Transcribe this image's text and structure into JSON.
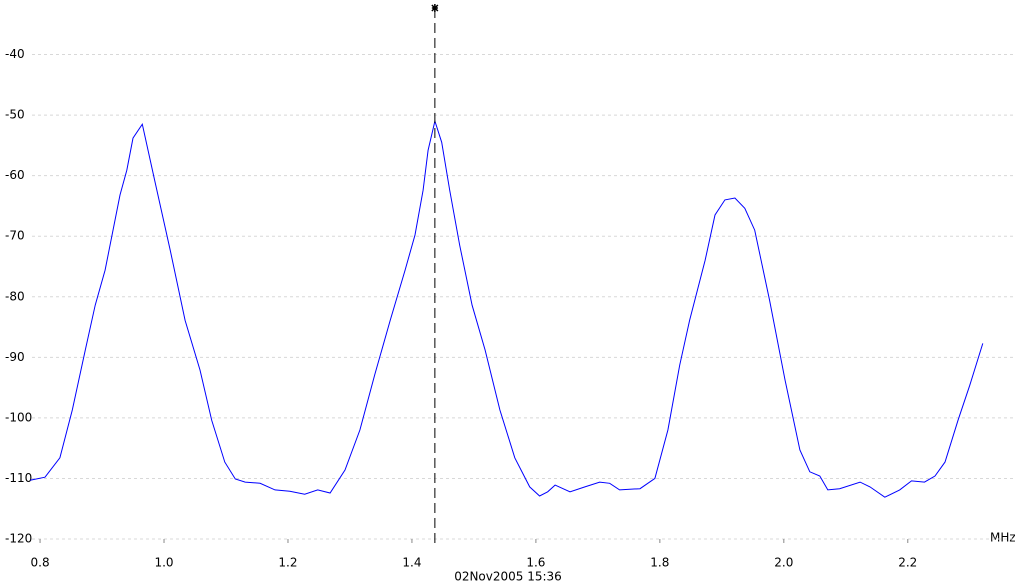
{
  "chart_data": {
    "type": "line",
    "x_unit_label": "MHz",
    "timestamp": "02Nov2005  15:36",
    "xlim": [
      0.787,
      2.373
    ],
    "ylim": [
      -120,
      -31
    ],
    "xticks": [
      0.8,
      {
        "value": 1,
        "label": "1.0"
      },
      1.2,
      1.4,
      1.6,
      1.8,
      {
        "value": 2,
        "label": "2.0"
      },
      2.2
    ],
    "yticks": [
      -40,
      -50,
      -60,
      -70,
      -80,
      -90,
      -100,
      -110,
      -120
    ],
    "grid": true,
    "marker_x": 1.437,
    "series": [
      {
        "color": "#0000ff",
        "x": [
          0.784,
          0.808,
          0.832,
          0.852,
          0.873,
          0.889,
          0.905,
          0.929,
          0.94,
          0.95,
          0.965,
          0.985,
          1.01,
          1.034,
          1.058,
          1.077,
          1.098,
          1.115,
          1.131,
          1.155,
          1.179,
          1.203,
          1.227,
          1.248,
          1.268,
          1.292,
          1.316,
          1.34,
          1.365,
          1.389,
          1.405,
          1.418,
          1.426,
          1.437,
          1.448,
          1.461,
          1.477,
          1.497,
          1.518,
          1.542,
          1.566,
          1.59,
          1.606,
          1.619,
          1.631,
          1.655,
          1.679,
          1.703,
          1.719,
          1.735,
          1.768,
          1.792,
          1.813,
          1.832,
          1.848,
          1.873,
          1.889,
          1.905,
          1.921,
          1.937,
          1.953,
          1.977,
          2.002,
          2.026,
          2.042,
          2.058,
          2.071,
          2.09,
          2.123,
          2.139,
          2.163,
          2.187,
          2.206,
          2.227,
          2.244,
          2.26,
          2.281,
          2.3,
          2.321
        ],
        "values": [
          -110.3,
          -109.8,
          -106.6,
          -98.7,
          -88.8,
          -81.4,
          -75.6,
          -63.2,
          -59.1,
          -53.8,
          -51.5,
          -60.8,
          -72.3,
          -83.9,
          -92.1,
          -100.4,
          -107.3,
          -110.1,
          -110.6,
          -110.8,
          -111.9,
          -112.1,
          -112.6,
          -111.9,
          -112.4,
          -108.6,
          -102.0,
          -92.9,
          -83.9,
          -75.6,
          -69.8,
          -62.4,
          -55.8,
          -51.0,
          -54.5,
          -62.4,
          -71.5,
          -81.4,
          -88.8,
          -98.7,
          -106.6,
          -111.4,
          -112.9,
          -112.2,
          -111.1,
          -112.2,
          -111.4,
          -110.6,
          -110.8,
          -111.9,
          -111.7,
          -110.0,
          -102.0,
          -91.3,
          -83.9,
          -74.0,
          -66.5,
          -64.0,
          -63.7,
          -65.4,
          -69.0,
          -80.6,
          -93.8,
          -105.3,
          -108.9,
          -109.6,
          -111.9,
          -111.7,
          -110.6,
          -111.4,
          -113.1,
          -111.9,
          -110.4,
          -110.6,
          -109.6,
          -107.3,
          -100.4,
          -94.6,
          -87.7
        ]
      }
    ]
  }
}
